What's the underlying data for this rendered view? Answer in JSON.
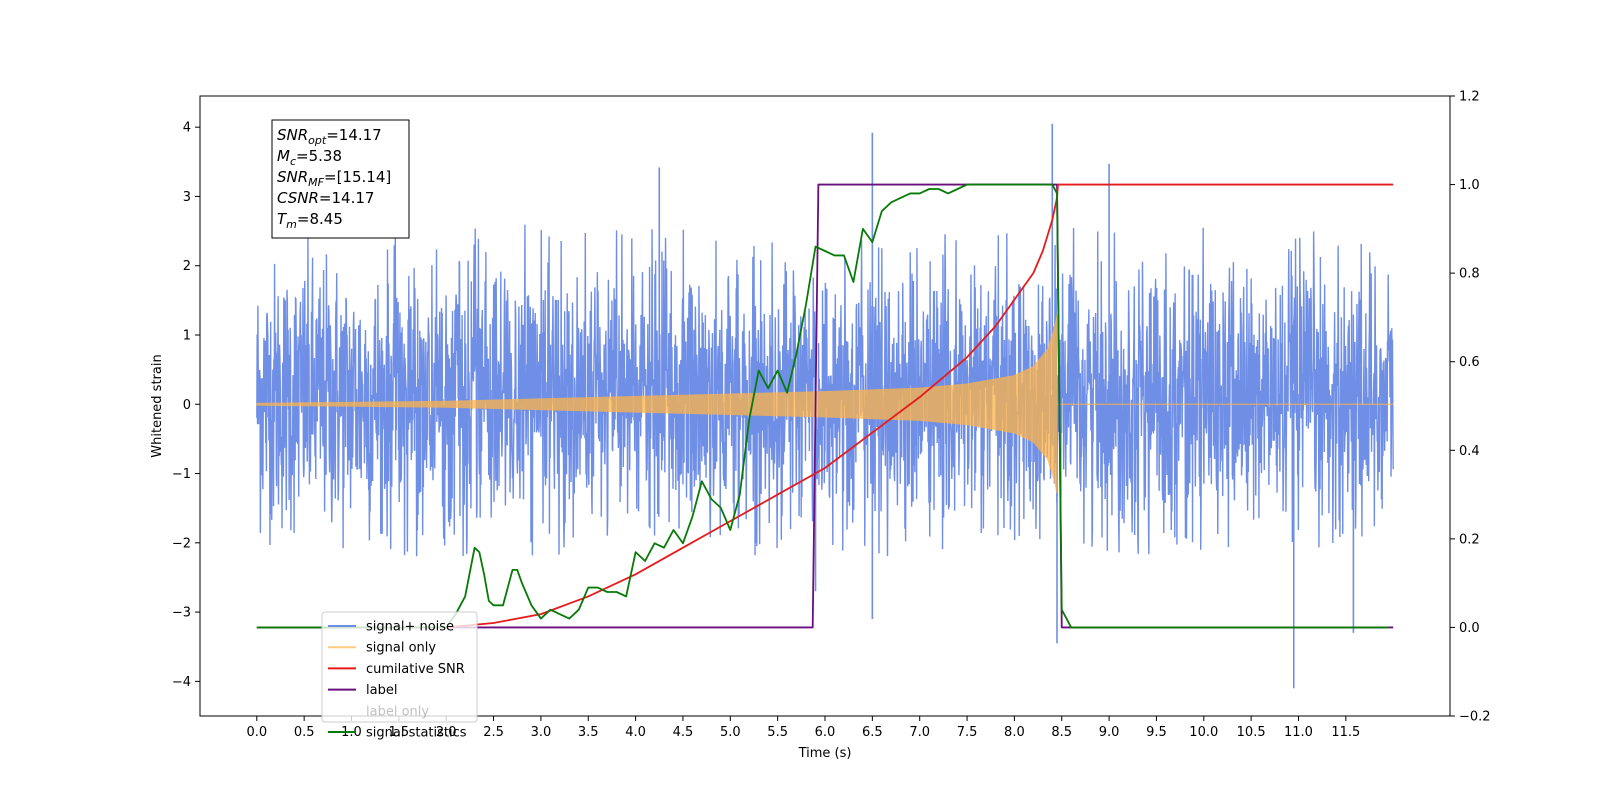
{
  "chart_data": {
    "type": "line",
    "xlabel": "Time (s)",
    "ylabel": "Whitened strain",
    "xlim": [
      -0.6,
      12.6
    ],
    "ylim": [
      -4.5,
      4.45
    ],
    "ylim_right": [
      -0.2,
      1.2
    ],
    "xticks": [
      0.0,
      0.5,
      1.0,
      1.5,
      2.0,
      2.5,
      3.0,
      3.5,
      4.0,
      4.5,
      5.0,
      5.5,
      6.0,
      6.5,
      7.0,
      7.5,
      8.0,
      8.5,
      9.0,
      9.5,
      10.0,
      10.5,
      11.0,
      11.5
    ],
    "xtick_labels": [
      "0.0",
      "0.5",
      "1.0",
      "1.5",
      "2.0",
      "2.5",
      "3.0",
      "3.5",
      "4.0",
      "4.5",
      "5.0",
      "5.5",
      "6.0",
      "6.5",
      "7.0",
      "7.5",
      "8.0",
      "8.5",
      "9.0",
      "9.5",
      "10.0",
      "10.5",
      "11.0",
      "11.5"
    ],
    "yticks_left": [
      -4,
      -3,
      -2,
      -1,
      0,
      1,
      2,
      3,
      4
    ],
    "ytick_labels_left": [
      "−4",
      "−3",
      "−2",
      "−1",
      "0",
      "1",
      "2",
      "3",
      "4"
    ],
    "yticks_right": [
      -0.2,
      0.0,
      0.2,
      0.4,
      0.6,
      0.8,
      1.0,
      1.2
    ],
    "ytick_labels_right": [
      "−0.2",
      "0.0",
      "0.2",
      "0.4",
      "0.6",
      "0.8",
      "1.0",
      "1.2"
    ],
    "grid": false,
    "legend_position": "lower-left",
    "series": [
      {
        "name": "signal+ noise",
        "axis": "left",
        "color": "#6f8ee6",
        "kind": "noise",
        "x_range": [
          0.0,
          12.0
        ],
        "typical_envelope": [
          -2.3,
          2.5
        ],
        "peaks": [
          {
            "x": 6.5,
            "y": 3.92
          },
          {
            "x": 8.4,
            "y": 4.05
          },
          {
            "x": 9.0,
            "y": 3.47
          },
          {
            "x": 4.25,
            "y": 3.42
          },
          {
            "x": 10.95,
            "y": -4.1
          },
          {
            "x": 8.45,
            "y": -3.45
          },
          {
            "x": 11.58,
            "y": -3.3
          },
          {
            "x": 5.9,
            "y": -2.7
          },
          {
            "x": 6.5,
            "y": -3.1
          }
        ]
      },
      {
        "name": "signal only",
        "axis": "left",
        "color": "#ffb347",
        "kind": "chirp",
        "x_start": 0.0,
        "x_merger": 8.45,
        "amplitude_points": [
          [
            0.0,
            0.02
          ],
          [
            2.0,
            0.05
          ],
          [
            4.0,
            0.12
          ],
          [
            6.0,
            0.19
          ],
          [
            7.0,
            0.24
          ],
          [
            7.5,
            0.3
          ],
          [
            8.0,
            0.42
          ],
          [
            8.2,
            0.55
          ],
          [
            8.35,
            0.8
          ],
          [
            8.42,
            1.1
          ],
          [
            8.45,
            1.3
          ]
        ]
      },
      {
        "name": "cumilative SNR",
        "axis": "right",
        "color": "#e61b1b",
        "x": [
          2.0,
          2.5,
          3.0,
          3.5,
          4.0,
          4.5,
          5.0,
          5.5,
          6.0,
          6.5,
          7.0,
          7.5,
          7.8,
          8.0,
          8.2,
          8.3,
          8.4,
          8.45,
          8.46,
          12.0
        ],
        "y": [
          0.0,
          0.01,
          0.03,
          0.07,
          0.12,
          0.18,
          0.24,
          0.3,
          0.36,
          0.44,
          0.52,
          0.61,
          0.68,
          0.74,
          0.8,
          0.85,
          0.92,
          0.97,
          1.0,
          1.0
        ]
      },
      {
        "name": "label",
        "axis": "right",
        "color": "#6a0e7e",
        "x": [
          0.0,
          5.87,
          5.93,
          8.45,
          8.5,
          12.0
        ],
        "y": [
          0.0,
          0.0,
          1.0,
          1.0,
          0.0,
          0.0
        ]
      },
      {
        "name": "label only",
        "axis": "right",
        "color": "#6a0e7e",
        "x": [],
        "y": []
      },
      {
        "name": "signal statistics",
        "axis": "right",
        "color": "#087a08",
        "x": [
          0.0,
          1.8,
          2.0,
          2.1,
          2.2,
          2.3,
          2.35,
          2.4,
          2.45,
          2.5,
          2.6,
          2.7,
          2.75,
          2.8,
          2.9,
          3.0,
          3.1,
          3.2,
          3.3,
          3.4,
          3.5,
          3.6,
          3.7,
          3.8,
          3.9,
          4.0,
          4.1,
          4.2,
          4.3,
          4.4,
          4.5,
          4.6,
          4.7,
          4.8,
          4.9,
          5.0,
          5.1,
          5.2,
          5.3,
          5.4,
          5.5,
          5.6,
          5.7,
          5.8,
          5.9,
          6.0,
          6.1,
          6.2,
          6.3,
          6.4,
          6.5,
          6.6,
          6.7,
          6.8,
          6.9,
          7.0,
          7.1,
          7.2,
          7.3,
          7.4,
          7.5,
          7.6,
          7.8,
          8.0,
          8.2,
          8.4,
          8.45,
          8.5,
          8.55,
          8.6,
          11.95
        ],
        "y": [
          0.0,
          0.0,
          0.0,
          0.03,
          0.07,
          0.18,
          0.17,
          0.12,
          0.06,
          0.05,
          0.05,
          0.13,
          0.13,
          0.1,
          0.05,
          0.02,
          0.04,
          0.03,
          0.02,
          0.04,
          0.09,
          0.09,
          0.08,
          0.08,
          0.07,
          0.17,
          0.15,
          0.19,
          0.18,
          0.22,
          0.19,
          0.25,
          0.33,
          0.29,
          0.27,
          0.22,
          0.3,
          0.47,
          0.58,
          0.54,
          0.58,
          0.53,
          0.62,
          0.73,
          0.86,
          0.85,
          0.84,
          0.84,
          0.78,
          0.9,
          0.87,
          0.94,
          0.96,
          0.97,
          0.98,
          0.98,
          0.99,
          0.99,
          0.98,
          0.99,
          1.0,
          1.0,
          1.0,
          1.0,
          1.0,
          1.0,
          0.98,
          0.04,
          0.02,
          0.0,
          0.0
        ]
      }
    ],
    "annotation": [
      {
        "base": "SNR",
        "sub": "opt",
        "value": "=14.17"
      },
      {
        "base": "M",
        "sub": "c",
        "value": "=5.38"
      },
      {
        "base": "SNR",
        "sub": "MF",
        "value": "=[15.14]"
      },
      {
        "base": "CSNR",
        "sub": "",
        "value": "=14.17"
      },
      {
        "base": "T",
        "sub": "m",
        "value": "=8.45"
      }
    ]
  }
}
